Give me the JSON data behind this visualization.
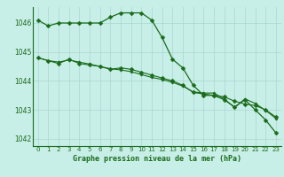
{
  "title": "Graphe pression niveau de la mer (hPa)",
  "bg_color": "#c8eee8",
  "grid_color": "#a8d8d0",
  "line_color": "#1a6b1a",
  "hours": [
    0,
    1,
    2,
    3,
    4,
    5,
    6,
    7,
    8,
    9,
    10,
    11,
    12,
    13,
    14,
    15,
    16,
    17,
    18,
    19,
    20,
    21,
    22,
    23
  ],
  "line1": [
    1046.1,
    1045.9,
    1046.0,
    1046.0,
    1046.0,
    1046.0,
    1046.0,
    1046.2,
    1046.35,
    1046.35,
    1046.35,
    1046.1,
    1045.5,
    1044.75,
    1044.45,
    1043.85,
    1043.5,
    1043.5,
    1043.35,
    1043.1,
    1043.35,
    1043.0,
    1042.65,
    1042.2
  ],
  "line2": [
    1044.8,
    1044.7,
    1044.6,
    1044.75,
    1044.6,
    1044.55,
    1044.5,
    1044.4,
    1044.45,
    1044.4,
    1044.3,
    1044.2,
    1044.1,
    1044.0,
    1043.85,
    1043.6,
    1043.55,
    1043.5,
    1043.45,
    1043.3,
    1043.2,
    1043.15,
    1043.0,
    1042.75
  ],
  "line3": [
    1044.8,
    1044.7,
    1044.65,
    1044.72,
    1044.65,
    1044.58,
    1044.5,
    1044.42,
    1044.38,
    1044.32,
    1044.22,
    1044.12,
    1044.05,
    1043.95,
    1043.82,
    1043.62,
    1043.58,
    1043.58,
    1043.38,
    1043.08,
    1043.38,
    1043.22,
    1042.98,
    1042.7
  ],
  "ylim": [
    1041.75,
    1046.55
  ],
  "yticks": [
    1042,
    1043,
    1044,
    1045,
    1046
  ],
  "xticks": [
    0,
    1,
    2,
    3,
    4,
    5,
    6,
    7,
    8,
    9,
    10,
    11,
    12,
    13,
    14,
    15,
    16,
    17,
    18,
    19,
    20,
    21,
    22,
    23
  ]
}
